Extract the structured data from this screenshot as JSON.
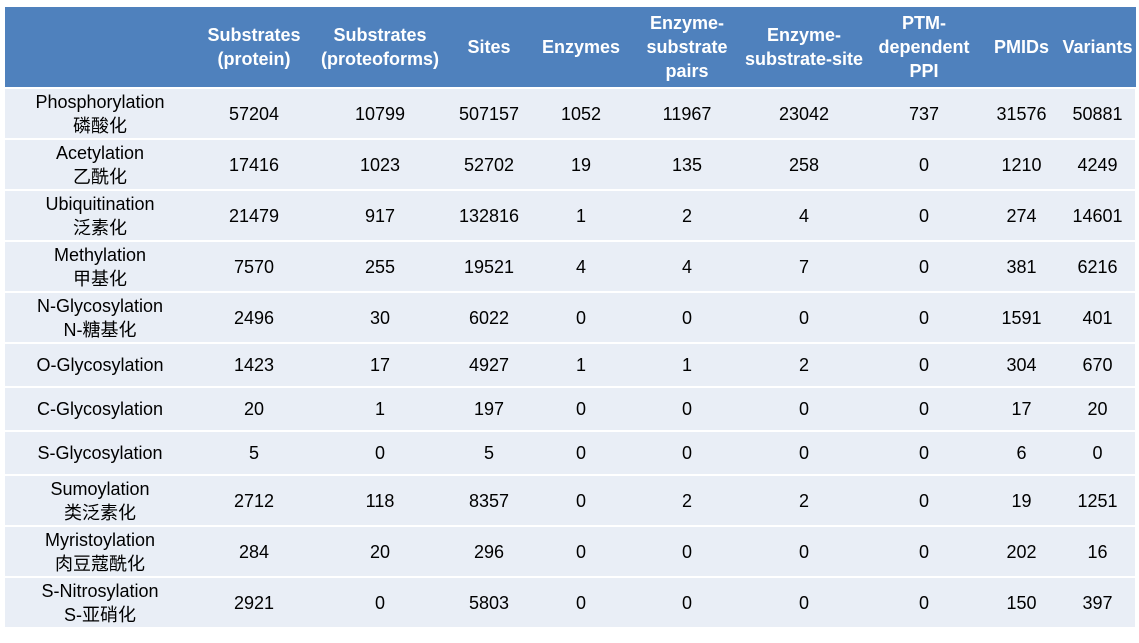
{
  "table": {
    "headers": [
      "",
      "Substrates (protein)",
      "Substrates (proteoforms)",
      "Sites",
      "Enzymes",
      "Enzyme-substrate pairs",
      "Enzyme-substrate-site",
      "PTM-dependent PPI",
      "PMIDs",
      "Variants"
    ],
    "rows": [
      {
        "name": "Phosphorylation",
        "name_cn": "磷酸化",
        "values": [
          "57204",
          "10799",
          "507157",
          "1052",
          "11967",
          "23042",
          "737",
          "31576",
          "50881"
        ]
      },
      {
        "name": "Acetylation",
        "name_cn": "乙酰化",
        "values": [
          "17416",
          "1023",
          "52702",
          "19",
          "135",
          "258",
          "0",
          "1210",
          "4249"
        ]
      },
      {
        "name": "Ubiquitination",
        "name_cn": "泛素化",
        "values": [
          "21479",
          "917",
          "132816",
          "1",
          "2",
          "4",
          "0",
          "274",
          "14601"
        ]
      },
      {
        "name": "Methylation",
        "name_cn": "甲基化",
        "values": [
          "7570",
          "255",
          "19521",
          "4",
          "4",
          "7",
          "0",
          "381",
          "6216"
        ]
      },
      {
        "name": "N-Glycosylation",
        "name_cn": "N-糖基化",
        "values": [
          "2496",
          "30",
          "6022",
          "0",
          "0",
          "0",
          "0",
          "1591",
          "401"
        ]
      },
      {
        "name": "O-Glycosylation",
        "name_cn": "",
        "values": [
          "1423",
          "17",
          "4927",
          "1",
          "1",
          "2",
          "0",
          "304",
          "670"
        ]
      },
      {
        "name": "C-Glycosylation",
        "name_cn": "",
        "values": [
          "20",
          "1",
          "197",
          "0",
          "0",
          "0",
          "0",
          "17",
          "20"
        ]
      },
      {
        "name": "S-Glycosylation",
        "name_cn": "",
        "values": [
          "5",
          "0",
          "5",
          "0",
          "0",
          "0",
          "0",
          "6",
          "0"
        ]
      },
      {
        "name": "Sumoylation",
        "name_cn": "类泛素化",
        "values": [
          "2712",
          "118",
          "8357",
          "0",
          "2",
          "2",
          "0",
          "19",
          "1251"
        ]
      },
      {
        "name": "Myristoylation",
        "name_cn": "肉豆蔻酰化",
        "values": [
          "284",
          "20",
          "296",
          "0",
          "0",
          "0",
          "0",
          "202",
          "16"
        ]
      },
      {
        "name": "S-Nitrosylation",
        "name_cn": "S-亚硝化",
        "values": [
          "2921",
          "0",
          "5803",
          "0",
          "0",
          "0",
          "0",
          "150",
          "397"
        ]
      }
    ]
  },
  "colors": {
    "header_background": "#4f81bd",
    "header_text": "#ffffff",
    "row_background": "#e9eef6",
    "row_divider": "#ffffff"
  }
}
